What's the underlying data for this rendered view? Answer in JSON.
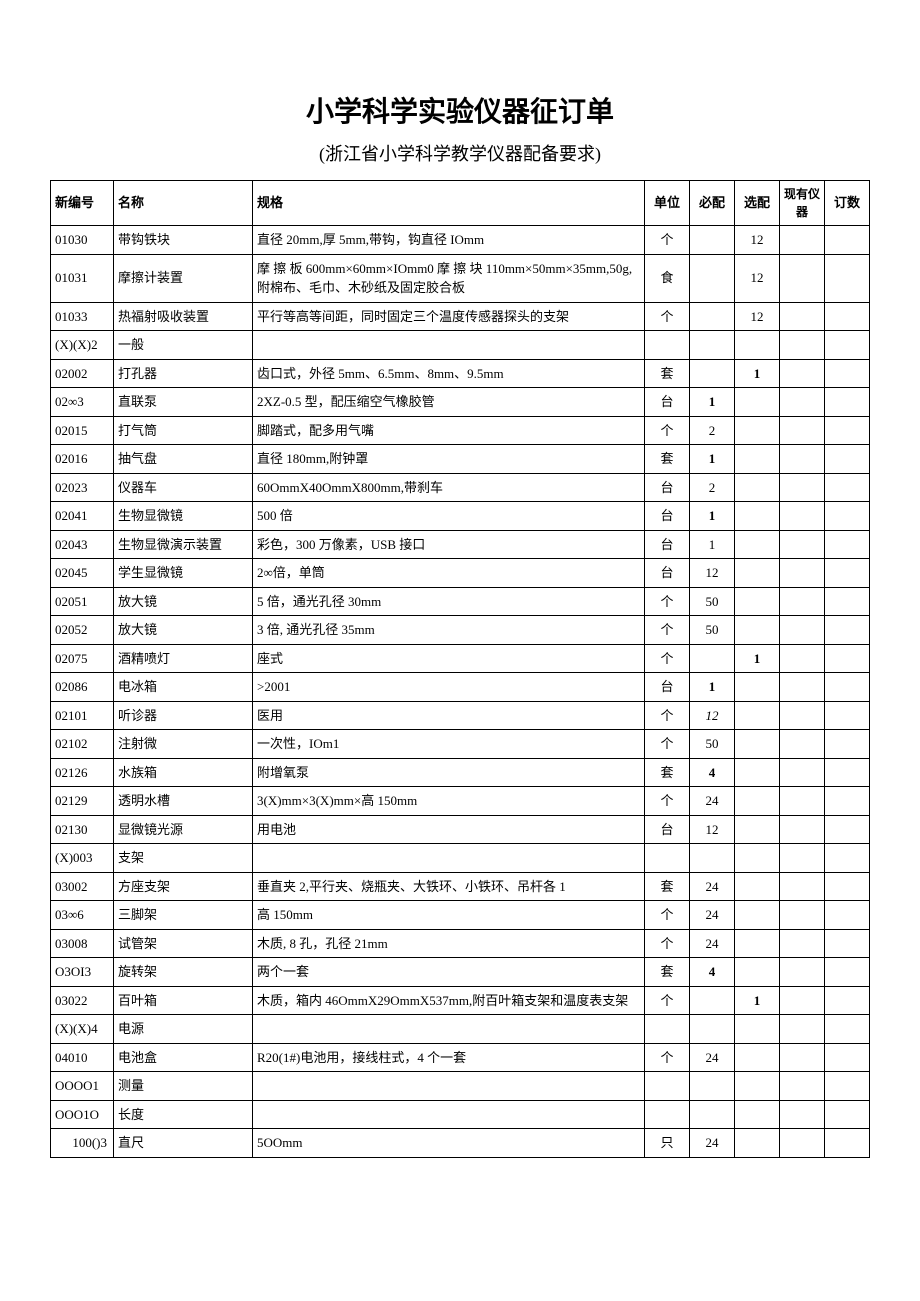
{
  "title": "小学科学实验仪器征订单",
  "subtitle": "(浙江省小学科学教学仪器配备要求)",
  "columns": [
    "新编号",
    "名称",
    "规格",
    "单位",
    "必配",
    "选配",
    "现有仪器",
    "订数"
  ],
  "rows": [
    {
      "id": "01030",
      "name": "带钩铁块",
      "spec": "直径 20mm,厚 5mm,带钩，钩直径 IOmm",
      "unit": "个",
      "req": "",
      "opt": "12"
    },
    {
      "id": "01031",
      "name": "摩擦计装置",
      "spec": "摩 擦 板 600mm×60mm×IOmm0 摩 擦 块 110mm×50mm×35mm,50g,附棉布、毛巾、木砂纸及固定胶合板",
      "unit": "食",
      "req": "",
      "opt": "12"
    },
    {
      "id": "01033",
      "name": "热福射吸收装置",
      "spec": "平行等高等间距，同时固定三个温度传感器探头的支架",
      "unit": "个",
      "req": "",
      "opt": "12"
    },
    {
      "id": "(X)(X)2",
      "name": "一般",
      "spec": "",
      "unit": "",
      "req": "",
      "opt": ""
    },
    {
      "id": "02002",
      "name": "打孔器",
      "spec": "齿口式，外径 5mm、6.5mm、8mm、9.5mm",
      "unit": "套",
      "req": "",
      "opt": "1",
      "opt_bold": true
    },
    {
      "id": "02∞3",
      "name": "直联泵",
      "spec": "2XZ-0.5 型，配压缩空气橡胶管",
      "unit": "台",
      "req": "1",
      "req_bold": true,
      "opt": ""
    },
    {
      "id": "02015",
      "name": "打气筒",
      "spec": "脚踏式，配多用气嘴",
      "unit": "个",
      "req": "2",
      "opt": ""
    },
    {
      "id": "02016",
      "name": "抽气盘",
      "spec": "直径 180mm,附钟罩",
      "unit": "套",
      "req": "1",
      "req_bold": true,
      "opt": ""
    },
    {
      "id": "02023",
      "name": "仪器车",
      "spec": "60OmmX40OmmX800mm,带刹车",
      "unit": "台",
      "req": "2",
      "opt": ""
    },
    {
      "id": "02041",
      "name": "生物显微镜",
      "spec": "500 倍",
      "unit": "台",
      "req": "1",
      "req_bold": true,
      "opt": ""
    },
    {
      "id": "02043",
      "name": "生物显微演示装置",
      "spec": "彩色，300 万像素，USB 接口",
      "unit": "台",
      "req": "1",
      "opt": ""
    },
    {
      "id": "02045",
      "name": "学生显微镜",
      "spec": "2∞倍，单筒",
      "unit": "台",
      "req": "12",
      "opt": ""
    },
    {
      "id": "02051",
      "name": "放大镜",
      "spec": "5 倍，通光孔径 30mm",
      "unit": "个",
      "req": "50",
      "opt": ""
    },
    {
      "id": "02052",
      "name": "放大镜",
      "spec": "3 倍, 通光孔径 35mm",
      "unit": "个",
      "req": "50",
      "opt": ""
    },
    {
      "id": "02075",
      "name": "酒精喷灯",
      "spec": "座式",
      "unit": "个",
      "req": "",
      "opt": "1",
      "opt_bold": true
    },
    {
      "id": "02086",
      "name": "电冰箱",
      "spec": ">2001",
      "unit": "台",
      "req": "1",
      "req_bold": true,
      "opt": ""
    },
    {
      "id": "02101",
      "name": "听诊器",
      "spec": "医用",
      "unit": "个",
      "req": "12",
      "req_italic": true,
      "opt": ""
    },
    {
      "id": "02102",
      "name": "注射微",
      "spec": "一次性，IOm1",
      "unit": "个",
      "req": "50",
      "opt": ""
    },
    {
      "id": "02126",
      "name": "水族箱",
      "spec": "附增氧泵",
      "unit": "套",
      "req": "4",
      "req_bold": true,
      "opt": ""
    },
    {
      "id": "02129",
      "name": "透明水槽",
      "spec": "3(X)mm×3(X)mm×高 150mm",
      "unit": "个",
      "req": "24",
      "opt": ""
    },
    {
      "id": "02130",
      "name": "显微镜光源",
      "spec": "用电池",
      "unit": "台",
      "req": "12",
      "opt": ""
    },
    {
      "id": "(X)003",
      "name": "支架",
      "spec": "",
      "unit": "",
      "req": "",
      "opt": ""
    },
    {
      "id": "03002",
      "name": "方座支架",
      "spec": "垂直夹 2,平行夹、烧瓶夹、大铁环、小铁环、吊杆各 1",
      "unit": "套",
      "req": "24",
      "opt": ""
    },
    {
      "id": "03∞6",
      "name": "三脚架",
      "spec": "高 150mm",
      "unit": "个",
      "req": "24",
      "opt": ""
    },
    {
      "id": "03008",
      "name": "试管架",
      "spec": "木质, 8 孔，孔径 21mm",
      "unit": "个",
      "req": "24",
      "opt": ""
    },
    {
      "id": "O3OI3",
      "name": "旋转架",
      "spec": "两个一套",
      "unit": "套",
      "req": "4",
      "req_bold": true,
      "opt": ""
    },
    {
      "id": "03022",
      "name": "百叶箱",
      "spec": "木质，箱内 46OmmX29OmmX537mm,附百叶箱支架和温度表支架",
      "unit": "个",
      "req": "",
      "opt": "1",
      "opt_bold": true
    },
    {
      "id": "(X)(X)4",
      "name": "电源",
      "spec": "",
      "unit": "",
      "req": "",
      "opt": ""
    },
    {
      "id": "04010",
      "name": "电池盒",
      "spec": "R20(1#)电池用，接线柱式，4 个一套",
      "unit": "个",
      "req": "24",
      "opt": ""
    },
    {
      "id": "OOOO1",
      "name": "测量",
      "spec": "",
      "unit": "",
      "req": "",
      "opt": ""
    },
    {
      "id": "OOO1O",
      "name": "长度",
      "spec": "",
      "unit": "",
      "req": "",
      "opt": ""
    },
    {
      "id": "100()3",
      "name": "直尺",
      "spec": "5OOmm",
      "unit": "只",
      "req": "24",
      "opt": "",
      "id_right": true
    }
  ]
}
